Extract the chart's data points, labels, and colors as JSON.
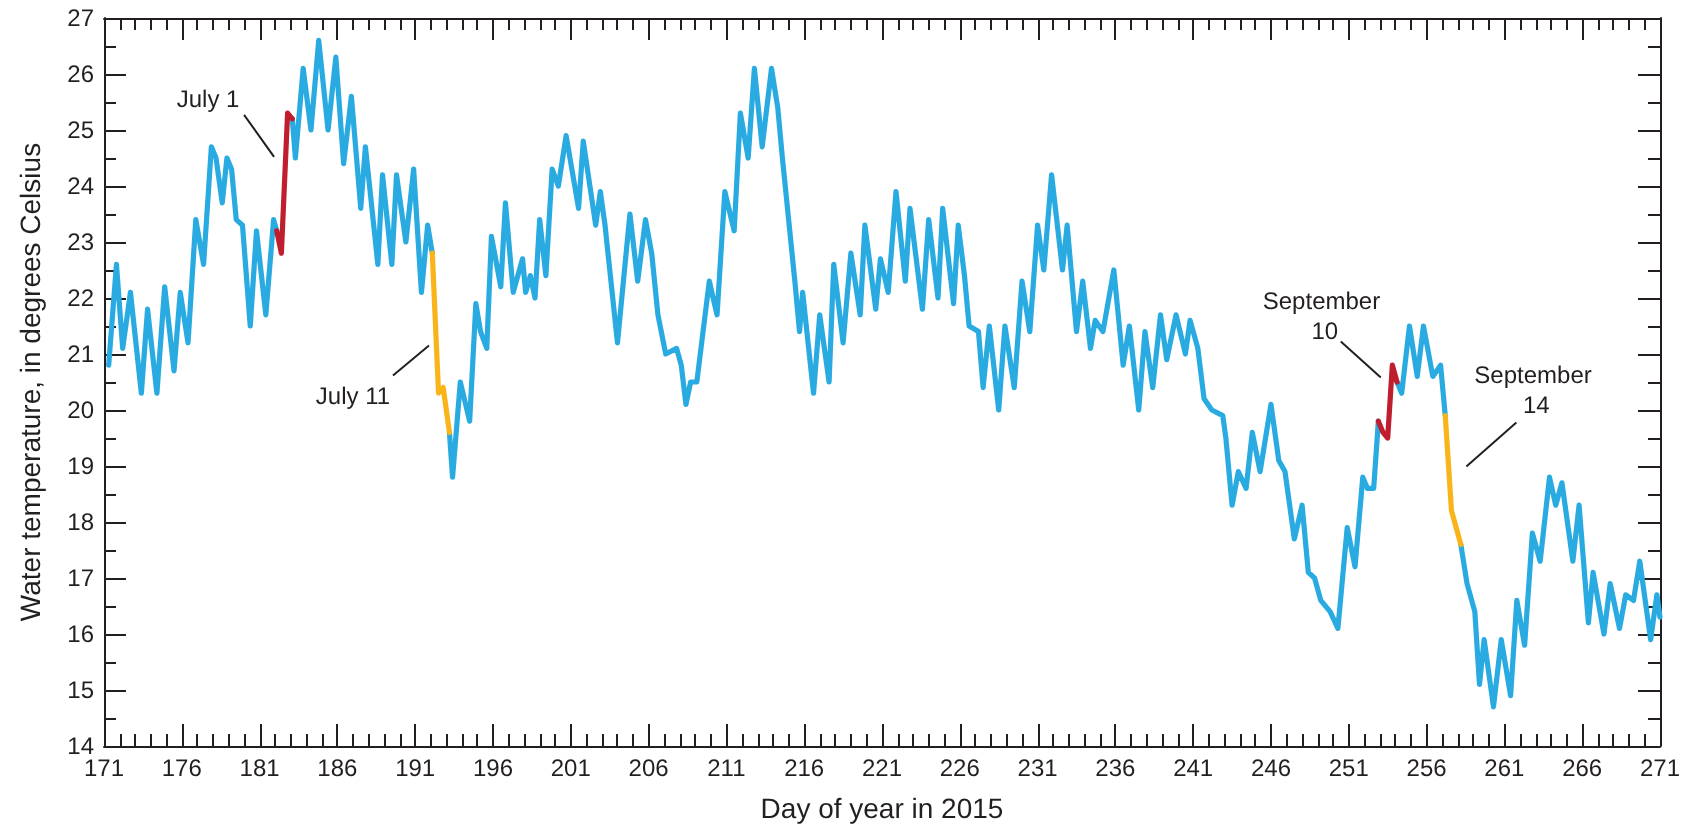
{
  "chart_data": {
    "type": "line",
    "xlabel": "Day of year in 2015",
    "ylabel": "Water temperature, in degrees Celsius",
    "xlim": [
      171,
      271
    ],
    "xticks": [
      171,
      {
        "value": 172,
        "label": null
      },
      {
        "value": 173,
        "label": null
      },
      {
        "value": 174,
        "label": null
      },
      {
        "value": 175,
        "label": null
      },
      176,
      {
        "value": 177,
        "label": null
      },
      {
        "value": 178,
        "label": null
      },
      {
        "value": 179,
        "label": null
      },
      {
        "value": 180,
        "label": null
      },
      181,
      {
        "value": 182,
        "label": null
      },
      {
        "value": 183,
        "label": null
      },
      {
        "value": 184,
        "label": null
      },
      {
        "value": 185,
        "label": null
      },
      186,
      {
        "value": 187,
        "label": null
      },
      {
        "value": 188,
        "label": null
      },
      {
        "value": 189,
        "label": null
      },
      {
        "value": 190,
        "label": null
      },
      191,
      {
        "value": 192,
        "label": null
      },
      {
        "value": 193,
        "label": null
      },
      {
        "value": 194,
        "label": null
      },
      {
        "value": 195,
        "label": null
      },
      196,
      {
        "value": 197,
        "label": null
      },
      {
        "value": 198,
        "label": null
      },
      {
        "value": 199,
        "label": null
      },
      {
        "value": 200,
        "label": null
      },
      201,
      {
        "value": 202,
        "label": null
      },
      {
        "value": 203,
        "label": null
      },
      {
        "value": 204,
        "label": null
      },
      {
        "value": 205,
        "label": null
      },
      206,
      {
        "value": 207,
        "label": null
      },
      {
        "value": 208,
        "label": null
      },
      {
        "value": 209,
        "label": null
      },
      {
        "value": 210,
        "label": null
      },
      211,
      {
        "value": 212,
        "label": null
      },
      {
        "value": 213,
        "label": null
      },
      {
        "value": 214,
        "label": null
      },
      {
        "value": 215,
        "label": null
      },
      216,
      {
        "value": 217,
        "label": null
      },
      {
        "value": 218,
        "label": null
      },
      {
        "value": 219,
        "label": null
      },
      {
        "value": 220,
        "label": null
      },
      221,
      {
        "value": 222,
        "label": null
      },
      {
        "value": 223,
        "label": null
      },
      {
        "value": 224,
        "label": null
      },
      {
        "value": 225,
        "label": null
      },
      226,
      {
        "value": 227,
        "label": null
      },
      {
        "value": 228,
        "label": null
      },
      {
        "value": 229,
        "label": null
      },
      {
        "value": 230,
        "label": null
      },
      231,
      {
        "value": 232,
        "label": null
      },
      {
        "value": 233,
        "label": null
      },
      {
        "value": 234,
        "label": null
      },
      {
        "value": 235,
        "label": null
      },
      236,
      {
        "value": 237,
        "label": null
      },
      {
        "value": 238,
        "label": null
      },
      {
        "value": 239,
        "label": null
      },
      {
        "value": 240,
        "label": null
      },
      241,
      {
        "value": 242,
        "label": null
      },
      {
        "value": 243,
        "label": null
      },
      {
        "value": 244,
        "label": null
      },
      {
        "value": 245,
        "label": null
      },
      246,
      {
        "value": 247,
        "label": null
      },
      {
        "value": 248,
        "label": null
      },
      {
        "value": 249,
        "label": null
      },
      {
        "value": 250,
        "label": null
      },
      251,
      {
        "value": 252,
        "label": null
      },
      {
        "value": 253,
        "label": null
      },
      {
        "value": 254,
        "label": null
      },
      {
        "value": 255,
        "label": null
      },
      256,
      {
        "value": 257,
        "label": null
      },
      {
        "value": 258,
        "label": null
      },
      {
        "value": 259,
        "label": null
      },
      {
        "value": 260,
        "label": null
      },
      261,
      {
        "value": 262,
        "label": null
      },
      {
        "value": 263,
        "label": null
      },
      {
        "value": 264,
        "label": null
      },
      {
        "value": 265,
        "label": null
      },
      266,
      {
        "value": 267,
        "label": null
      },
      {
        "value": 268,
        "label": null
      },
      {
        "value": 269,
        "label": null
      },
      {
        "value": 270,
        "label": null
      },
      271
    ],
    "ylim": [
      14,
      27
    ],
    "yticks": [
      14,
      {
        "value": 14.5,
        "label": null
      },
      15,
      {
        "value": 15.5,
        "label": null
      },
      16,
      {
        "value": 16.5,
        "label": null
      },
      17,
      {
        "value": 17.5,
        "label": null
      },
      18,
      {
        "value": 18.5,
        "label": null
      },
      19,
      {
        "value": 19.5,
        "label": null
      },
      20,
      {
        "value": 20.5,
        "label": null
      },
      21,
      {
        "value": 21.5,
        "label": null
      },
      22,
      {
        "value": 22.5,
        "label": null
      },
      23,
      {
        "value": 23.5,
        "label": null
      },
      24,
      {
        "value": 24.5,
        "label": null
      },
      25,
      {
        "value": 25.5,
        "label": null
      },
      26,
      {
        "value": 26.5,
        "label": null
      },
      27
    ],
    "marker": "none",
    "line_style": "solid",
    "series": [
      {
        "color": "#29abe2",
        "x": [
          171.3,
          171.8,
          172.2,
          172.7,
          173.4,
          173.8,
          174.4,
          174.9,
          175.5,
          175.9,
          176.4,
          176.9,
          177.4,
          177.9,
          178.2,
          178.6,
          178.9,
          179.2,
          179.5,
          179.9,
          180.4,
          180.8,
          181.4,
          181.9,
          182.1,
          182.6,
          183.1,
          183.3,
          183.8,
          184.3,
          184.8,
          185.4,
          185.9,
          186.4,
          186.9,
          187.5,
          187.8,
          188.6,
          188.9,
          189.5,
          189.8,
          190.4,
          190.9,
          191.4,
          191.8,
          192.1,
          192.6,
          193.2,
          193.4,
          193.9,
          194.5,
          194.9,
          195.2,
          195.6,
          195.9,
          196.5,
          196.8,
          197.3,
          197.9,
          198.1,
          198.4,
          198.7,
          199.0,
          199.4,
          199.8,
          200.2,
          200.7,
          201.5,
          201.8,
          202.6,
          202.9,
          203.2,
          204.0,
          204.8,
          205.3,
          205.8,
          206.2,
          206.6,
          207.1,
          207.8,
          208.1,
          208.4,
          208.7,
          209.1,
          209.9,
          210.4,
          210.9,
          211.5,
          211.9,
          212.4,
          212.8,
          213.3,
          213.9,
          214.3,
          214.6,
          215.4,
          215.7,
          215.9,
          216.6,
          217.0,
          217.6,
          217.9,
          218.5,
          219.0,
          219.6,
          219.9,
          220.6,
          220.9,
          221.4,
          221.9,
          222.5,
          222.8,
          223.6,
          224.0,
          224.6,
          224.9,
          225.6,
          225.9,
          226.3,
          226.6,
          227.2,
          227.5,
          227.9,
          228.5,
          228.9,
          229.5,
          230.0,
          230.5,
          231.0,
          231.4,
          231.9,
          232.6,
          232.9,
          233.5,
          233.9,
          234.4,
          234.7,
          235.2,
          235.9,
          236.5,
          236.9,
          237.5,
          237.9,
          238.4,
          238.9,
          239.3,
          239.9,
          240.5,
          240.8,
          241.3,
          241.7,
          242.2,
          242.9,
          243.1,
          243.5,
          243.9,
          244.4,
          244.8,
          245.3,
          246.0,
          246.5,
          246.9,
          247.5,
          248.0,
          248.4,
          248.8,
          249.2,
          249.8,
          250.3,
          250.9,
          251.4,
          251.9,
          252.2,
          252.6,
          252.9,
          253.5,
          254.1,
          254.4,
          254.9,
          255.4,
          255.8,
          256.4,
          256.9,
          257.2,
          257.7,
          258.2,
          258.6,
          259.1,
          259.4,
          259.7,
          260.3,
          260.8,
          261.4,
          261.8,
          262.3,
          262.8,
          263.3,
          263.9,
          264.3,
          264.7,
          265.4,
          265.8,
          266.4,
          266.7,
          267.4,
          267.8,
          268.4,
          268.8,
          269.3,
          269.7,
          270.4,
          270.8,
          271.0
        ],
        "values": [
          20.8,
          22.6,
          21.1,
          22.1,
          20.3,
          21.8,
          20.3,
          22.2,
          20.7,
          22.1,
          21.2,
          23.4,
          22.6,
          24.7,
          24.5,
          23.7,
          24.5,
          24.3,
          23.4,
          23.3,
          21.5,
          23.2,
          21.7,
          23.4,
          23.2,
          null,
          25.2,
          24.5,
          26.1,
          25.0,
          26.6,
          25.0,
          26.3,
          24.4,
          25.6,
          23.6,
          24.7,
          22.6,
          24.2,
          22.6,
          24.2,
          23.0,
          24.3,
          22.1,
          23.3,
          22.8,
          null,
          19.6,
          18.8,
          20.5,
          19.8,
          21.9,
          21.4,
          21.1,
          23.1,
          22.2,
          23.7,
          22.1,
          22.7,
          22.1,
          22.4,
          22.0,
          23.4,
          22.4,
          24.3,
          24.0,
          24.9,
          23.6,
          24.8,
          23.3,
          23.9,
          23.3,
          21.2,
          23.5,
          22.3,
          23.4,
          22.8,
          21.7,
          21.0,
          21.1,
          20.8,
          20.1,
          20.5,
          20.5,
          22.3,
          21.7,
          23.9,
          23.2,
          25.3,
          24.5,
          26.1,
          24.7,
          26.1,
          25.4,
          24.5,
          22.3,
          21.4,
          22.1,
          20.3,
          21.7,
          20.5,
          22.6,
          21.2,
          22.8,
          21.7,
          23.3,
          21.8,
          22.7,
          22.1,
          23.9,
          22.3,
          23.6,
          21.8,
          23.4,
          22.0,
          23.6,
          21.9,
          23.3,
          22.4,
          21.5,
          21.4,
          20.4,
          21.5,
          20.0,
          21.5,
          20.4,
          22.3,
          21.4,
          23.3,
          22.5,
          24.2,
          22.5,
          23.3,
          21.4,
          22.3,
          21.1,
          21.6,
          21.4,
          22.5,
          20.8,
          21.5,
          20.0,
          21.4,
          20.4,
          21.7,
          20.9,
          21.7,
          21.0,
          21.6,
          21.1,
          20.2,
          20.0,
          19.9,
          19.5,
          18.3,
          18.9,
          18.6,
          19.6,
          18.9,
          20.1,
          19.1,
          18.9,
          17.7,
          18.3,
          17.1,
          17.0,
          16.6,
          16.4,
          16.1,
          17.9,
          17.2,
          18.8,
          18.6,
          18.6,
          19.8,
          null,
          20.5,
          20.3,
          21.5,
          20.6,
          21.5,
          20.6,
          20.8,
          19.9,
          null,
          17.6,
          16.9,
          16.4,
          15.1,
          15.9,
          14.7,
          15.9,
          14.9,
          16.6,
          15.8,
          17.8,
          17.3,
          18.8,
          18.3,
          18.7,
          17.3,
          18.3,
          16.2,
          17.1,
          16.0,
          16.9,
          16.1,
          16.7,
          16.6,
          17.3,
          15.9,
          16.7,
          16.3
        ]
      },
      {
        "color": "#be1e2d",
        "x": [
          182.1,
          182.4,
          182.8,
          183.1,
          218.0,
          252.9,
          253.2,
          253.5,
          253.8,
          254.1
        ],
        "values": [
          23.2,
          22.8,
          25.3,
          25.2,
          null,
          19.8,
          19.6,
          19.5,
          20.8,
          20.5
        ]
      },
      {
        "color": "#f9b41a",
        "x": [
          192.1,
          192.5,
          192.8,
          193.2,
          225.0,
          257.2,
          257.6,
          258.2
        ],
        "values": [
          22.8,
          20.3,
          20.4,
          19.6,
          null,
          19.9,
          18.2,
          17.6
        ]
      }
    ],
    "annotations": [
      {
        "text": "July 1",
        "x": 182.7,
        "y": 24.7
      },
      {
        "text": "July 11",
        "x": 192.4,
        "y": 20.9
      },
      {
        "text": "September 10",
        "x": 253.7,
        "y": 20.4
      },
      {
        "text": "September 14",
        "x": 257.4,
        "y": 19.1
      }
    ]
  }
}
